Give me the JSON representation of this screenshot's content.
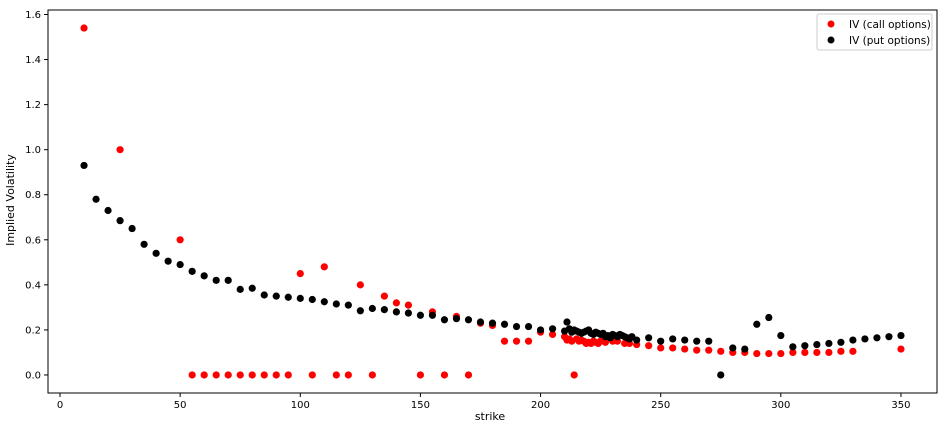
{
  "chart_data": {
    "type": "scatter",
    "xlabel": "strike",
    "ylabel": "Implied Volatility",
    "xlim": [
      -5,
      365
    ],
    "ylim": [
      -0.08,
      1.62
    ],
    "xticks": [
      0,
      50,
      100,
      150,
      200,
      250,
      300,
      350
    ],
    "yticks": [
      0.0,
      0.2,
      0.4,
      0.6,
      0.8,
      1.0,
      1.2,
      1.4,
      1.6
    ],
    "xtick_labels": [
      "0",
      "50",
      "100",
      "150",
      "200",
      "250",
      "300",
      "350"
    ],
    "ytick_labels": [
      "0.0",
      "0.2",
      "0.4",
      "0.6",
      "0.8",
      "1.0",
      "1.2",
      "1.4",
      "1.6"
    ],
    "grid": false,
    "legend": "top-right",
    "series": [
      {
        "name": "IV (call options)",
        "color": "#ff0000",
        "points": [
          [
            10,
            1.54
          ],
          [
            25,
            1.0
          ],
          [
            50,
            0.6
          ],
          [
            55,
            0.0
          ],
          [
            60,
            0.0
          ],
          [
            65,
            0.0
          ],
          [
            70,
            0.0
          ],
          [
            75,
            0.0
          ],
          [
            80,
            0.0
          ],
          [
            85,
            0.0
          ],
          [
            90,
            0.0
          ],
          [
            95,
            0.0
          ],
          [
            100,
            0.45
          ],
          [
            105,
            0.0
          ],
          [
            110,
            0.48
          ],
          [
            115,
            0.0
          ],
          [
            120,
            0.0
          ],
          [
            125,
            0.4
          ],
          [
            130,
            0.0
          ],
          [
            135,
            0.35
          ],
          [
            140,
            0.32
          ],
          [
            145,
            0.31
          ],
          [
            150,
            0.0
          ],
          [
            155,
            0.28
          ],
          [
            160,
            0.0
          ],
          [
            165,
            0.26
          ],
          [
            170,
            0.0
          ],
          [
            175,
            0.23
          ],
          [
            180,
            0.22
          ],
          [
            185,
            0.15
          ],
          [
            190,
            0.15
          ],
          [
            195,
            0.15
          ],
          [
            200,
            0.19
          ],
          [
            205,
            0.18
          ],
          [
            210,
            0.17
          ],
          [
            211,
            0.155
          ],
          [
            212,
            0.16
          ],
          [
            213,
            0.15
          ],
          [
            214,
            0.0
          ],
          [
            215,
            0.16
          ],
          [
            216,
            0.15
          ],
          [
            217,
            0.155
          ],
          [
            218,
            0.15
          ],
          [
            219,
            0.14
          ],
          [
            220,
            0.145
          ],
          [
            221,
            0.14
          ],
          [
            222,
            0.15
          ],
          [
            223,
            0.145
          ],
          [
            224,
            0.14
          ],
          [
            225,
            0.15
          ],
          [
            227,
            0.145
          ],
          [
            230,
            0.15
          ],
          [
            232,
            0.15
          ],
          [
            235,
            0.14
          ],
          [
            237,
            0.14
          ],
          [
            240,
            0.135
          ],
          [
            245,
            0.13
          ],
          [
            250,
            0.12
          ],
          [
            255,
            0.12
          ],
          [
            260,
            0.115
          ],
          [
            265,
            0.11
          ],
          [
            270,
            0.11
          ],
          [
            275,
            0.105
          ],
          [
            280,
            0.1
          ],
          [
            285,
            0.1
          ],
          [
            290,
            0.095
          ],
          [
            295,
            0.095
          ],
          [
            300,
            0.095
          ],
          [
            305,
            0.1
          ],
          [
            310,
            0.1
          ],
          [
            315,
            0.1
          ],
          [
            320,
            0.1
          ],
          [
            325,
            0.105
          ],
          [
            330,
            0.105
          ],
          [
            350,
            0.115
          ]
        ]
      },
      {
        "name": "IV (put options)",
        "color": "#000000",
        "points": [
          [
            10,
            0.93
          ],
          [
            15,
            0.78
          ],
          [
            20,
            0.73
          ],
          [
            25,
            0.685
          ],
          [
            30,
            0.65
          ],
          [
            35,
            0.58
          ],
          [
            40,
            0.54
          ],
          [
            45,
            0.505
          ],
          [
            50,
            0.49
          ],
          [
            55,
            0.46
          ],
          [
            60,
            0.44
          ],
          [
            65,
            0.42
          ],
          [
            70,
            0.42
          ],
          [
            75,
            0.38
          ],
          [
            80,
            0.385
          ],
          [
            85,
            0.355
          ],
          [
            90,
            0.35
          ],
          [
            95,
            0.345
          ],
          [
            100,
            0.34
          ],
          [
            105,
            0.335
          ],
          [
            110,
            0.325
          ],
          [
            115,
            0.315
          ],
          [
            120,
            0.31
          ],
          [
            125,
            0.285
          ],
          [
            130,
            0.295
          ],
          [
            135,
            0.29
          ],
          [
            140,
            0.28
          ],
          [
            145,
            0.275
          ],
          [
            150,
            0.265
          ],
          [
            155,
            0.265
          ],
          [
            160,
            0.245
          ],
          [
            165,
            0.25
          ],
          [
            170,
            0.245
          ],
          [
            175,
            0.235
          ],
          [
            180,
            0.23
          ],
          [
            185,
            0.225
          ],
          [
            190,
            0.215
          ],
          [
            195,
            0.215
          ],
          [
            200,
            0.2
          ],
          [
            205,
            0.205
          ],
          [
            210,
            0.195
          ],
          [
            211,
            0.235
          ],
          [
            212,
            0.205
          ],
          [
            213,
            0.19
          ],
          [
            214,
            0.2
          ],
          [
            215,
            0.195
          ],
          [
            216,
            0.19
          ],
          [
            217,
            0.185
          ],
          [
            218,
            0.19
          ],
          [
            219,
            0.195
          ],
          [
            220,
            0.2
          ],
          [
            221,
            0.185
          ],
          [
            222,
            0.18
          ],
          [
            223,
            0.19
          ],
          [
            224,
            0.185
          ],
          [
            225,
            0.18
          ],
          [
            226,
            0.185
          ],
          [
            227,
            0.17
          ],
          [
            228,
            0.175
          ],
          [
            229,
            0.165
          ],
          [
            230,
            0.18
          ],
          [
            231,
            0.175
          ],
          [
            232,
            0.17
          ],
          [
            233,
            0.18
          ],
          [
            234,
            0.175
          ],
          [
            235,
            0.17
          ],
          [
            236,
            0.165
          ],
          [
            237,
            0.16
          ],
          [
            238,
            0.17
          ],
          [
            240,
            0.155
          ],
          [
            245,
            0.165
          ],
          [
            250,
            0.15
          ],
          [
            255,
            0.16
          ],
          [
            260,
            0.155
          ],
          [
            265,
            0.15
          ],
          [
            270,
            0.15
          ],
          [
            275,
            0.0
          ],
          [
            280,
            0.12
          ],
          [
            285,
            0.115
          ],
          [
            290,
            0.225
          ],
          [
            295,
            0.255
          ],
          [
            300,
            0.175
          ],
          [
            305,
            0.125
          ],
          [
            310,
            0.13
          ],
          [
            315,
            0.135
          ],
          [
            320,
            0.14
          ],
          [
            325,
            0.145
          ],
          [
            330,
            0.155
          ],
          [
            335,
            0.16
          ],
          [
            340,
            0.165
          ],
          [
            345,
            0.17
          ],
          [
            350,
            0.175
          ]
        ]
      }
    ]
  }
}
